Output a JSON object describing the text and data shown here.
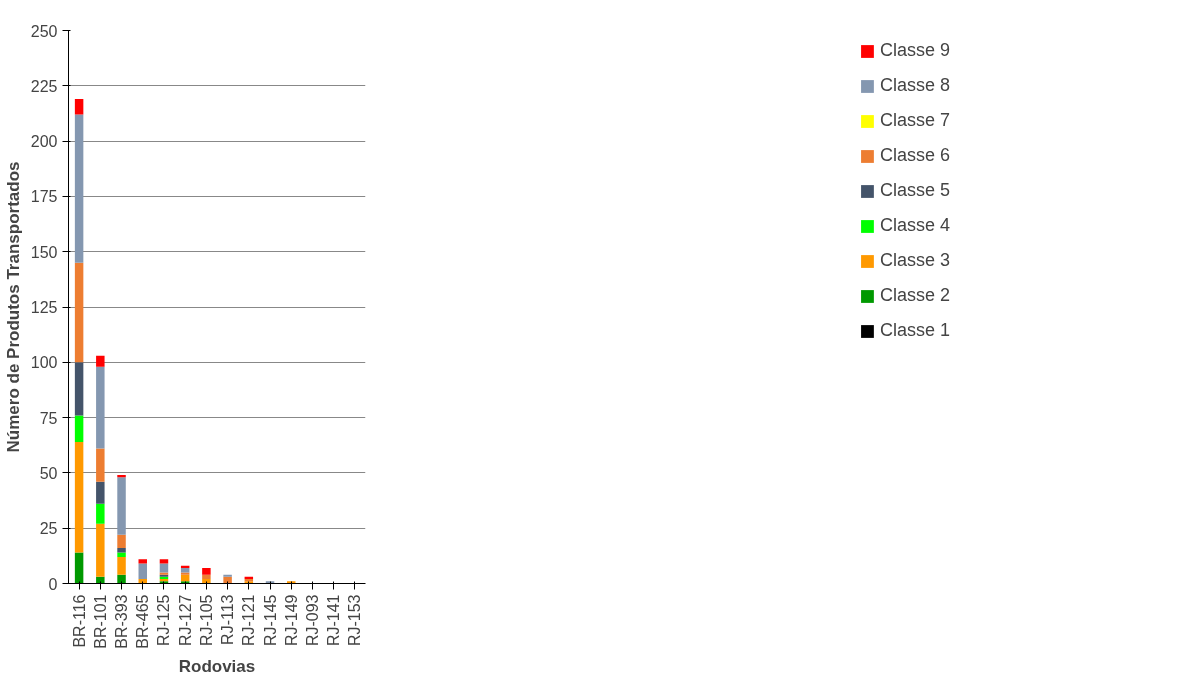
{
  "chart_data": {
    "type": "bar",
    "stacked": true,
    "xlabel": "Rodovias",
    "ylabel": "Número de Produtos Transportados",
    "categories": [
      "BR-116",
      "BR-101",
      "BR-393",
      "BR-465",
      "RJ-125",
      "RJ-127",
      "RJ-105",
      "RJ-113",
      "RJ-121",
      "RJ-145",
      "RJ-149",
      "RJ-093",
      "RJ-141",
      "RJ-153"
    ],
    "ylim": [
      0,
      250
    ],
    "yticks": [
      0,
      25,
      50,
      75,
      100,
      125,
      150,
      175,
      200,
      225,
      250
    ],
    "grid": "y",
    "legend": "right",
    "series": [
      {
        "name": "Classe 1",
        "color": "#000000",
        "values": [
          0,
          0,
          0,
          0,
          0,
          0,
          0,
          0,
          0,
          0,
          0,
          0,
          0,
          0
        ]
      },
      {
        "name": "Classe 2",
        "color": "#009900",
        "values": [
          14,
          3,
          4,
          0,
          1,
          1,
          0,
          0,
          0,
          0,
          0,
          0,
          0,
          0
        ]
      },
      {
        "name": "Classe 3",
        "color": "#ff9900",
        "values": [
          50,
          24,
          8,
          2,
          1,
          3,
          2,
          0,
          1,
          0,
          1,
          0,
          0,
          0
        ]
      },
      {
        "name": "Classe 4",
        "color": "#00ff00",
        "values": [
          12,
          9,
          2,
          0,
          1,
          0,
          0,
          0,
          0,
          0,
          0,
          0,
          0,
          0
        ]
      },
      {
        "name": "Classe 5",
        "color": "#44546a",
        "values": [
          24,
          10,
          2,
          0,
          1,
          0,
          0,
          0,
          0,
          0,
          0,
          0,
          0,
          0
        ]
      },
      {
        "name": "Classe 6",
        "color": "#ed7d31",
        "values": [
          45,
          15,
          6,
          0,
          1,
          1,
          2,
          3,
          1,
          0,
          0,
          0,
          0,
          0
        ]
      },
      {
        "name": "Classe 7",
        "color": "#ffff00",
        "values": [
          0,
          0,
          0,
          0,
          0,
          0,
          0,
          0,
          0,
          0,
          0,
          0,
          0,
          0
        ]
      },
      {
        "name": "Classe 8",
        "color": "#8497b0",
        "values": [
          67,
          37,
          26,
          7,
          4,
          2,
          0,
          1,
          0,
          1,
          0,
          0,
          0,
          0
        ]
      },
      {
        "name": "Classe 9",
        "color": "#ff0000",
        "values": [
          7,
          5,
          1,
          2,
          2,
          1,
          3,
          0,
          1,
          0,
          0,
          0,
          0,
          0
        ]
      }
    ]
  }
}
